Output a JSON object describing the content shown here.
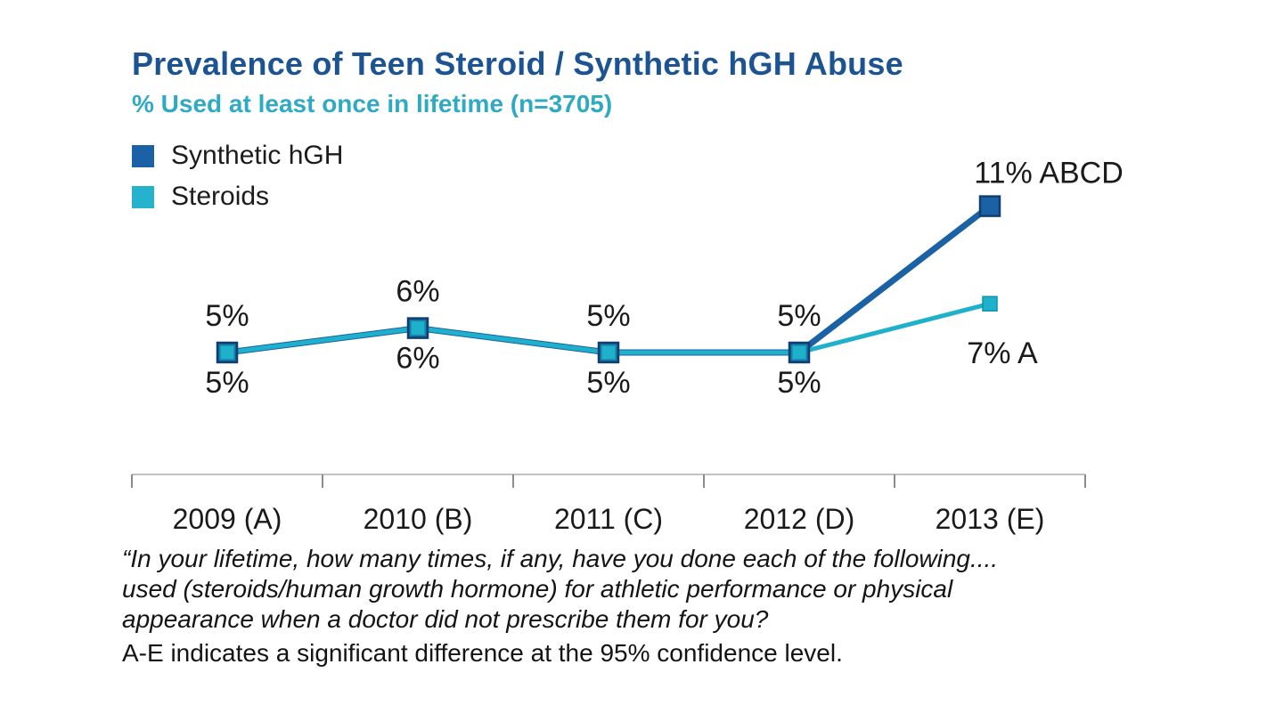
{
  "header": {
    "title": "Prevalence of Teen Steroid / Synthetic hGH Abuse",
    "subtitle": "% Used at least once in lifetime (n=3705)"
  },
  "legend": {
    "items": [
      {
        "label": "Synthetic hGH",
        "color": "#1B61A5"
      },
      {
        "label": "Steroids",
        "color": "#24B2CC"
      }
    ]
  },
  "chart_data": {
    "type": "line",
    "title": "Prevalence of Teen Steroid / Synthetic hGH Abuse",
    "subtitle": "% Used at least once in lifetime (n=3705)",
    "categories": [
      "2009 (A)",
      "2010 (B)",
      "2011 (C)",
      "2012 (D)",
      "2013 (E)"
    ],
    "series": [
      {
        "name": "Synthetic hGH",
        "color": "#1B61A5",
        "marker_border": "#123E6F",
        "values": [
          5,
          6,
          5,
          5,
          11
        ],
        "labels": [
          "5%",
          "6%",
          "5%",
          "5%",
          "11% ABCD"
        ],
        "label_side": "above"
      },
      {
        "name": "Steroids",
        "color": "#1FB0CB",
        "marker_border": "#0E93AD",
        "values": [
          5,
          6,
          5,
          5,
          7
        ],
        "labels": [
          "5%",
          "6%",
          "5%",
          "5%",
          "7% A"
        ],
        "label_side": "below"
      }
    ],
    "ylim": [
      0,
      12
    ],
    "xlabel": "",
    "ylabel": "",
    "grid": false,
    "legend_position": "top-left",
    "axis": {
      "line_color": "#C2C2C2",
      "tick_color": "#8C8C8C"
    },
    "label_color": "#1a1a1a"
  },
  "footnote": {
    "quote_lines": [
      "“In your lifetime, how many times, if any, have you done each of the following....",
      "used (steroids/human growth hormone) for athletic performance or physical",
      "appearance when a doctor did not prescribe them for you?"
    ],
    "note": "A-E indicates a significant difference at the 95% confidence level."
  }
}
